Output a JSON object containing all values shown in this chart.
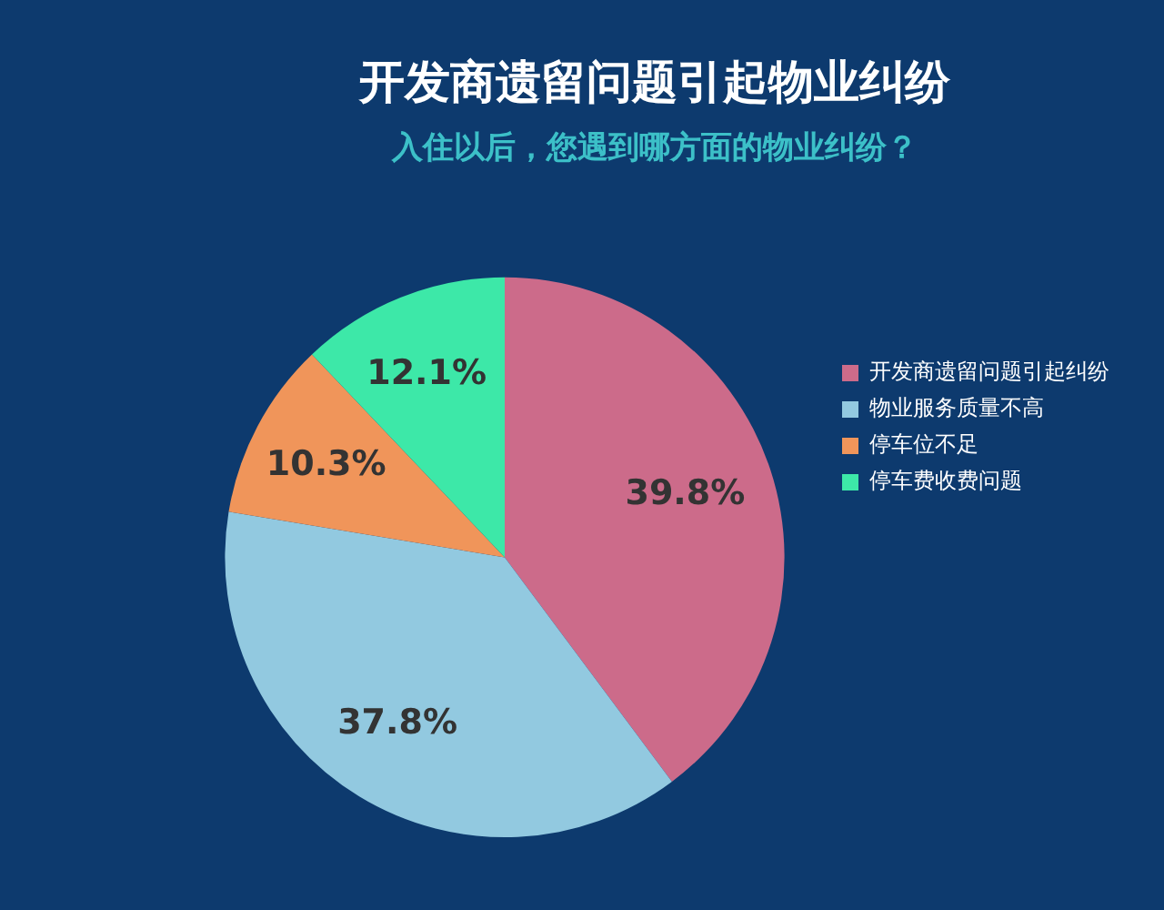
{
  "chart_data": {
    "type": "pie",
    "title": "开发商遗留问题引起物业纠纷",
    "subtitle": "入住以后，您遇到哪方面的物业纠纷？",
    "categories": [
      "开发商遗留问题引起纠纷",
      "物业服务质量不高",
      "停车位不足",
      "停车费收费问题"
    ],
    "values": [
      39.8,
      37.8,
      10.3,
      12.1
    ],
    "colors": [
      "#cc6b8a",
      "#92c9e0",
      "#f0955a",
      "#3de8a8"
    ],
    "value_labels": [
      "39.8%",
      "37.8%",
      "10.3%",
      "12.1%"
    ],
    "legend": "right"
  }
}
